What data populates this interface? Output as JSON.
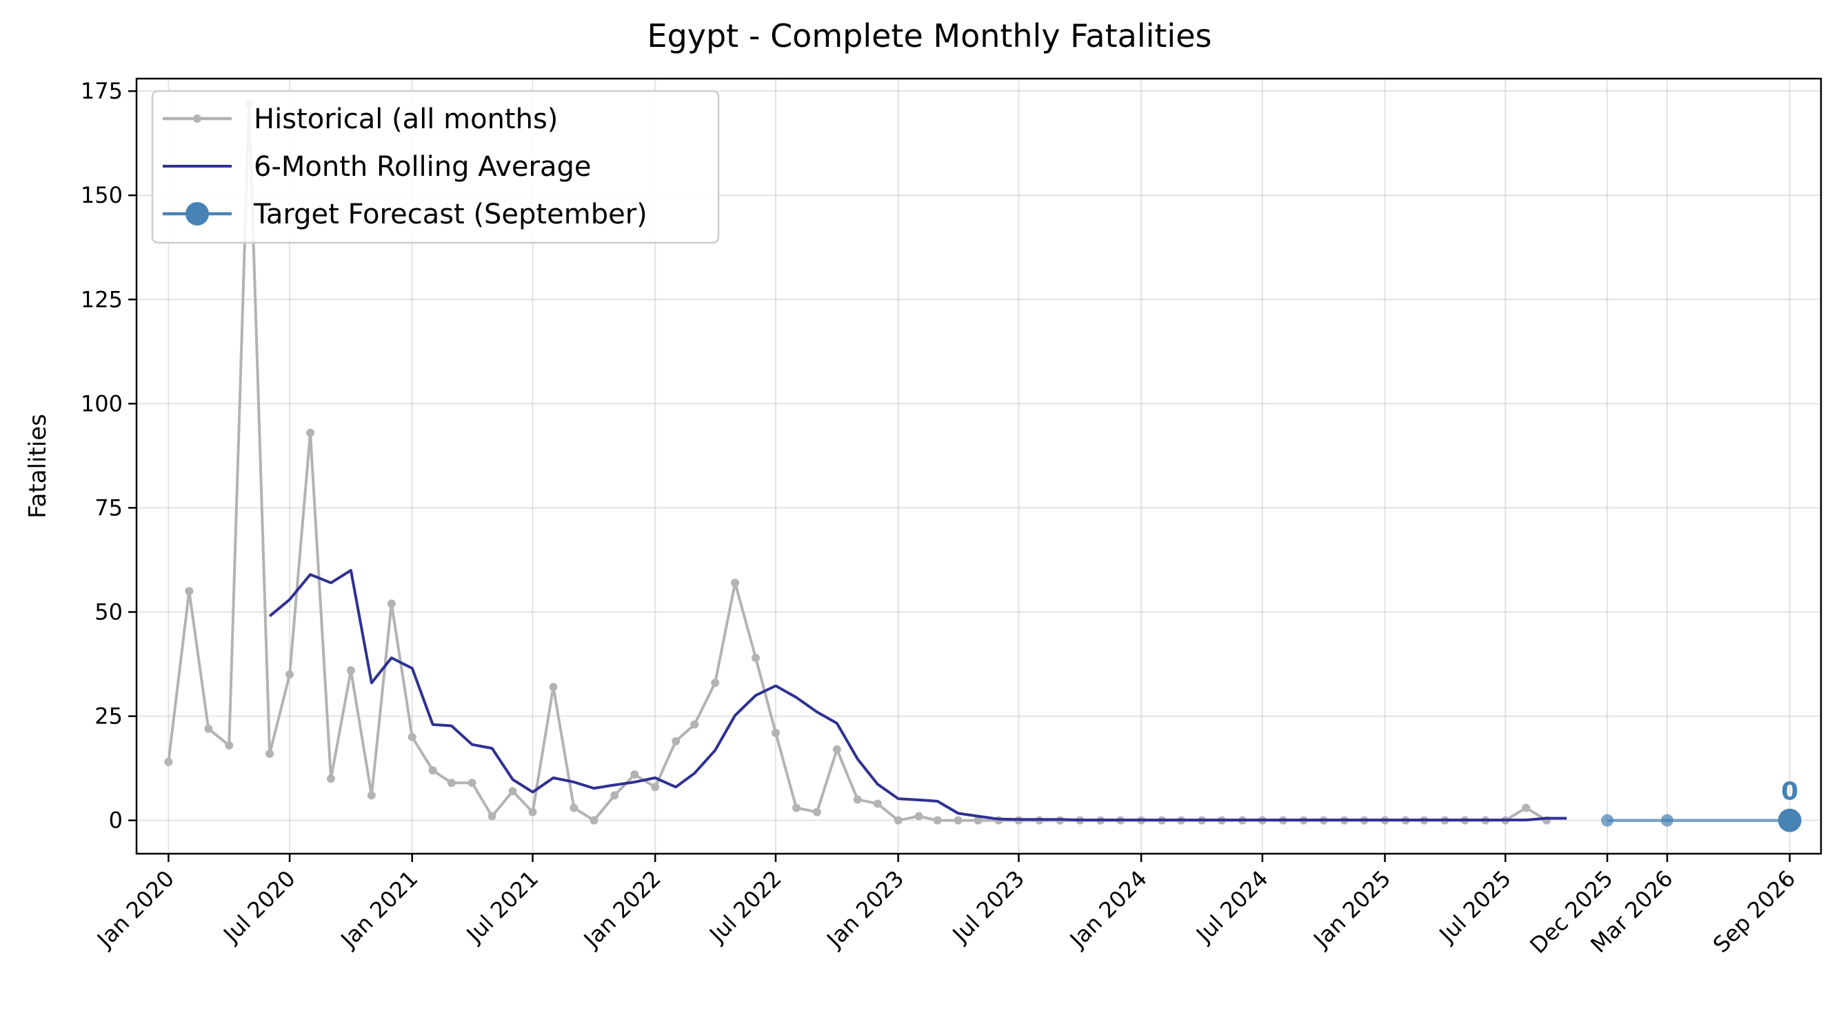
{
  "chart_data": {
    "type": "line",
    "title": "Egypt - Complete Monthly Fatalities",
    "xlabel": "",
    "ylabel": "Fatalities",
    "ylim": [
      -8,
      178
    ],
    "xlim": [
      "2019-11-14",
      "2026-10-18"
    ],
    "y_ticks": [
      0,
      25,
      50,
      75,
      100,
      125,
      150,
      175
    ],
    "x_ticks": [
      {
        "date": "2020-01-01",
        "label": "Jan 2020"
      },
      {
        "date": "2020-07-01",
        "label": "Jul 2020"
      },
      {
        "date": "2021-01-01",
        "label": "Jan 2021"
      },
      {
        "date": "2021-07-01",
        "label": "Jul 2021"
      },
      {
        "date": "2022-01-01",
        "label": "Jan 2022"
      },
      {
        "date": "2022-07-01",
        "label": "Jul 2022"
      },
      {
        "date": "2023-01-01",
        "label": "Jan 2023"
      },
      {
        "date": "2023-07-01",
        "label": "Jul 2023"
      },
      {
        "date": "2024-01-01",
        "label": "Jan 2024"
      },
      {
        "date": "2024-07-01",
        "label": "Jul 2024"
      },
      {
        "date": "2025-01-01",
        "label": "Jan 2025"
      },
      {
        "date": "2025-07-01",
        "label": "Jul 2025"
      },
      {
        "date": "2025-12-01",
        "label": "Dec 2025"
      },
      {
        "date": "2026-03-01",
        "label": "Mar 2026"
      },
      {
        "date": "2026-09-01",
        "label": "Sep 2026"
      }
    ],
    "grid": true,
    "legend_position": "top-left",
    "series": [
      {
        "name": "Historical (all months)",
        "color": "#b3b3b3",
        "marker": "small-dot",
        "start": "2020-01",
        "values": [
          14,
          55,
          22,
          18,
          172,
          16,
          35,
          93,
          10,
          36,
          6,
          52,
          20,
          12,
          9,
          9,
          1,
          7,
          2,
          32,
          3,
          0,
          6,
          11,
          8,
          19,
          23,
          33,
          57,
          39,
          21,
          3,
          2,
          17,
          5,
          4,
          0,
          1,
          0,
          0,
          0,
          0,
          0,
          0,
          0,
          0,
          0,
          0,
          0,
          0,
          0,
          0,
          0,
          0,
          0,
          0,
          0,
          0,
          0,
          0,
          0,
          0,
          0,
          0,
          0,
          0,
          0,
          3,
          0
        ]
      },
      {
        "name": "6-Month Rolling Average",
        "color": "#2e3192",
        "marker": "none",
        "start": "2020-06",
        "values": [
          49,
          53,
          59,
          57,
          60,
          33,
          39,
          36.5,
          23,
          22.7,
          18.2,
          17.3,
          9.8,
          6.8,
          10.2,
          9.2,
          7.7,
          8.5,
          9.2,
          10.2,
          8,
          11.3,
          16.8,
          25.2,
          30,
          32.3,
          29.5,
          26,
          23.3,
          14.7,
          8.7,
          5.2,
          4.9,
          4.6,
          1.7,
          1,
          0.3,
          0.2,
          0.2,
          0.2,
          0.1,
          0.1,
          0.1,
          0.1,
          0.1,
          0.1,
          0.1,
          0.1,
          0.1,
          0.1,
          0.1,
          0.1,
          0.1,
          0.1,
          0.1,
          0.1,
          0.1,
          0.1,
          0.1,
          0.1,
          0.1,
          0.1,
          0.1,
          0.5,
          0.5
        ]
      },
      {
        "name": "Target Forecast (September)",
        "color": "#4682b4",
        "marker": "large-dot",
        "points": [
          {
            "date": "2025-12-01",
            "value": 0
          },
          {
            "date": "2026-03-01",
            "value": 0
          },
          {
            "date": "2026-09-01",
            "value": 0
          }
        ]
      }
    ],
    "annotations": [
      {
        "date": "2026-09-01",
        "value": 0,
        "text": "0",
        "color": "#4682b4"
      }
    ]
  }
}
